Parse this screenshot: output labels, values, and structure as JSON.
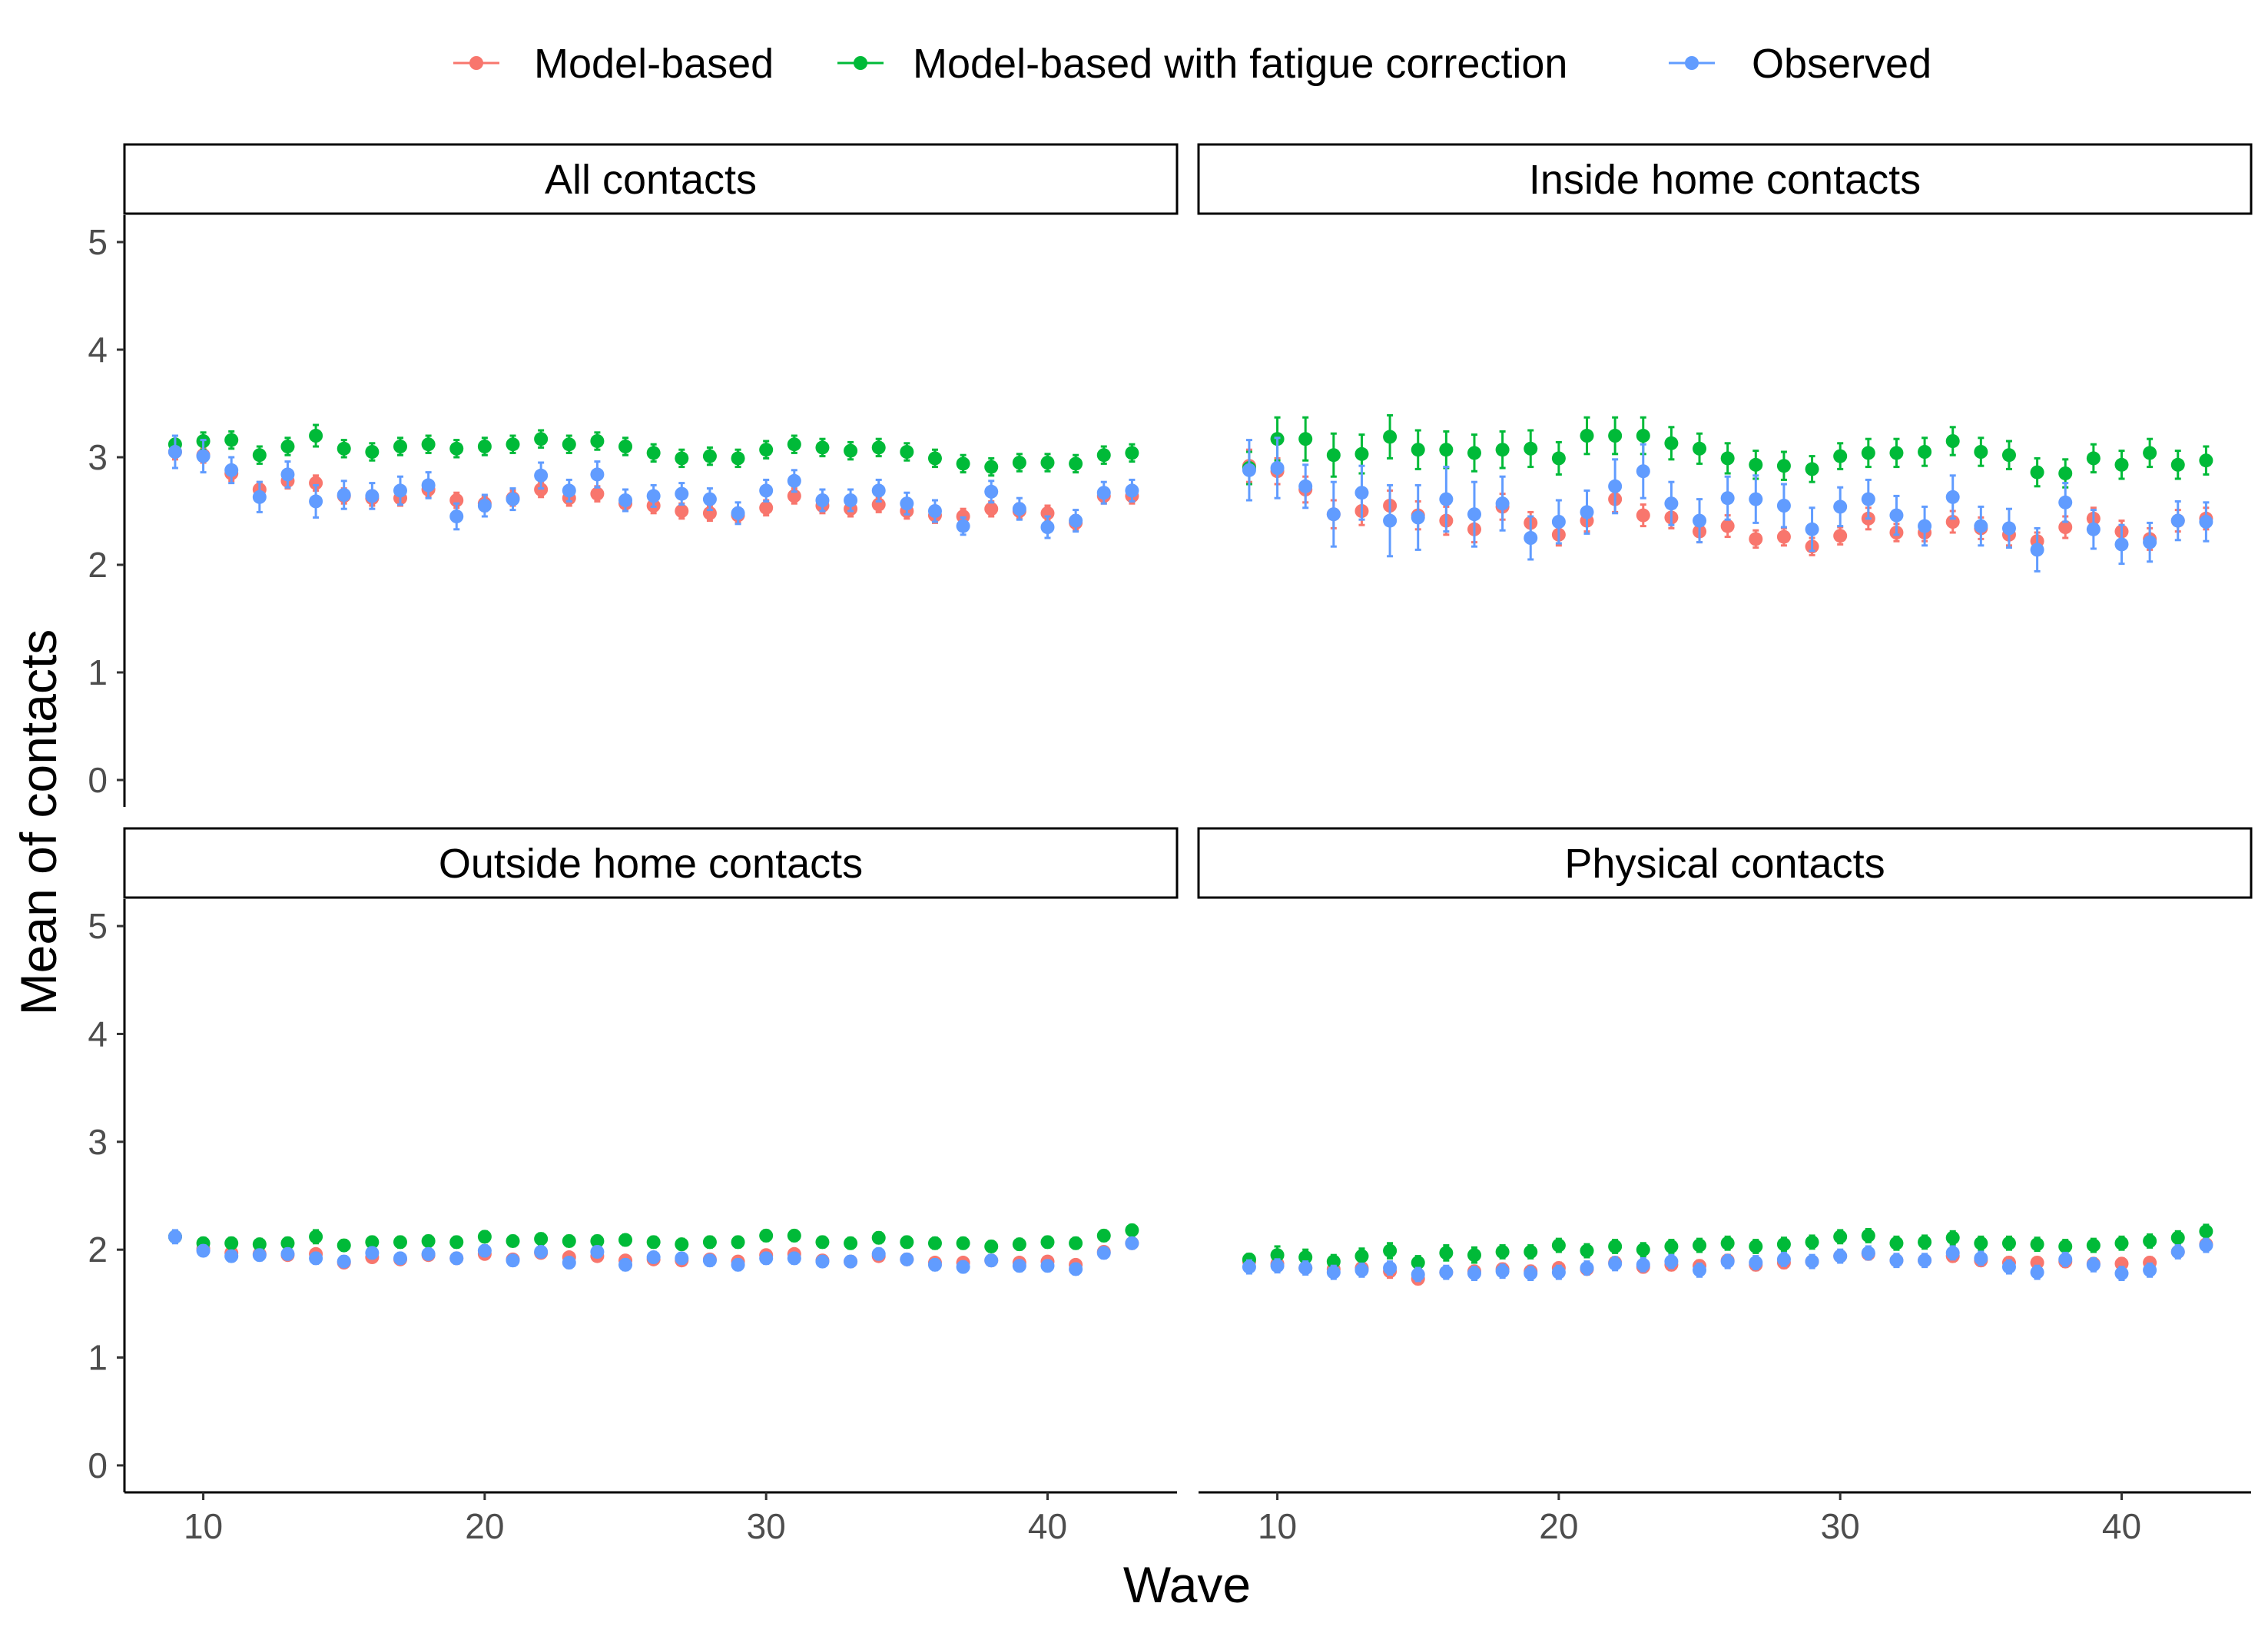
{
  "chart_data": {
    "type": "scatter",
    "xlabel": "Wave",
    "ylabel": "Mean of contacts",
    "xlim": [
      7.2,
      44.6
    ],
    "ylim": [
      -0.25,
      5.25
    ],
    "xticks": [
      10,
      20,
      30,
      40
    ],
    "yticks": [
      0,
      1,
      2,
      3,
      4,
      5
    ],
    "legend_position": "top",
    "series": [
      {
        "name": "Model-based",
        "color": "#F8766D"
      },
      {
        "name": "Model-based with fatigue correction",
        "color": "#00BA38"
      },
      {
        "name": "Observed",
        "color": "#619CFF"
      }
    ],
    "x": [
      9,
      10,
      11,
      12,
      13,
      14,
      15,
      16,
      17,
      18,
      19,
      20,
      21,
      22,
      23,
      24,
      25,
      26,
      27,
      28,
      29,
      30,
      31,
      32,
      33,
      34,
      35,
      36,
      37,
      38,
      39,
      40,
      41,
      42,
      43
    ],
    "panels": [
      {
        "title": "All contacts",
        "values": {
          "Model-based": [
            3.05,
            3.02,
            2.85,
            2.7,
            2.78,
            2.76,
            2.64,
            2.62,
            2.62,
            2.7,
            2.6,
            2.57,
            2.62,
            2.7,
            2.62,
            2.66,
            2.57,
            2.55,
            2.5,
            2.48,
            2.46,
            2.53,
            2.64,
            2.55,
            2.52,
            2.56,
            2.5,
            2.46,
            2.45,
            2.52,
            2.5,
            2.48,
            2.39,
            2.64,
            2.64
          ],
          "Model-based with fatigue correction": [
            3.12,
            3.15,
            3.16,
            3.02,
            3.1,
            3.2,
            3.08,
            3.05,
            3.1,
            3.12,
            3.08,
            3.1,
            3.12,
            3.17,
            3.12,
            3.15,
            3.1,
            3.04,
            2.99,
            3.01,
            2.99,
            3.07,
            3.12,
            3.09,
            3.06,
            3.09,
            3.05,
            2.99,
            2.94,
            2.91,
            2.95,
            2.95,
            2.94,
            3.02,
            3.04
          ],
          "Observed": [
            3.05,
            3.01,
            2.88,
            2.63,
            2.84,
            2.59,
            2.65,
            2.64,
            2.69,
            2.74,
            2.45,
            2.55,
            2.61,
            2.83,
            2.69,
            2.84,
            2.6,
            2.64,
            2.66,
            2.61,
            2.48,
            2.69,
            2.78,
            2.6,
            2.6,
            2.69,
            2.57,
            2.5,
            2.36,
            2.68,
            2.52,
            2.35,
            2.41,
            2.67,
            2.69
          ]
        },
        "errors": {
          "Model-based": [
            0.07,
            0.07,
            0.07,
            0.07,
            0.07,
            0.07,
            0.07,
            0.07,
            0.07,
            0.07,
            0.07,
            0.07,
            0.07,
            0.07,
            0.07,
            0.07,
            0.07,
            0.07,
            0.07,
            0.07,
            0.07,
            0.07,
            0.07,
            0.07,
            0.07,
            0.07,
            0.07,
            0.07,
            0.07,
            0.07,
            0.07,
            0.07,
            0.07,
            0.07,
            0.07
          ],
          "Model-based with fatigue correction": [
            0.08,
            0.08,
            0.08,
            0.08,
            0.08,
            0.1,
            0.08,
            0.08,
            0.08,
            0.08,
            0.08,
            0.08,
            0.08,
            0.08,
            0.08,
            0.08,
            0.08,
            0.08,
            0.08,
            0.08,
            0.08,
            0.08,
            0.08,
            0.08,
            0.08,
            0.08,
            0.08,
            0.08,
            0.08,
            0.08,
            0.08,
            0.08,
            0.08,
            0.08,
            0.08
          ],
          "Observed": [
            0.15,
            0.15,
            0.12,
            0.14,
            0.12,
            0.15,
            0.13,
            0.12,
            0.13,
            0.12,
            0.12,
            0.1,
            0.1,
            0.12,
            0.1,
            0.12,
            0.1,
            0.1,
            0.1,
            0.1,
            0.1,
            0.1,
            0.1,
            0.1,
            0.1,
            0.1,
            0.1,
            0.1,
            0.08,
            0.1,
            0.1,
            0.1,
            0.1,
            0.1,
            0.1
          ]
        }
      },
      {
        "title": "Inside home contacts",
        "values": {
          "Model-based": [
            2.92,
            2.87,
            2.7,
            2.47,
            2.5,
            2.55,
            2.46,
            2.41,
            2.33,
            2.54,
            2.39,
            2.28,
            2.41,
            2.61,
            2.46,
            2.44,
            2.31,
            2.36,
            2.24,
            2.26,
            2.17,
            2.27,
            2.43,
            2.3,
            2.3,
            2.4,
            2.34,
            2.28,
            2.22,
            2.35,
            2.43,
            2.31,
            2.24,
            2.41,
            2.43
          ],
          "Model-based with fatigue correction": [
            2.9,
            3.17,
            3.17,
            3.02,
            3.03,
            3.19,
            3.07,
            3.07,
            3.04,
            3.07,
            3.08,
            2.99,
            3.2,
            3.2,
            3.2,
            3.13,
            3.08,
            2.99,
            2.93,
            2.92,
            2.89,
            3.01,
            3.04,
            3.04,
            3.05,
            3.15,
            3.05,
            3.02,
            2.86,
            2.85,
            2.99,
            2.93,
            3.04,
            2.93,
            2.97
          ],
          "Observed": [
            2.88,
            2.9,
            2.73,
            2.47,
            2.67,
            2.41,
            2.44,
            2.61,
            2.47,
            2.57,
            2.25,
            2.4,
            2.49,
            2.73,
            2.87,
            2.57,
            2.41,
            2.62,
            2.61,
            2.55,
            2.33,
            2.54,
            2.61,
            2.46,
            2.36,
            2.63,
            2.36,
            2.34,
            2.14,
            2.58,
            2.33,
            2.19,
            2.21,
            2.41,
            2.4
          ]
        },
        "errors": {
          "Model-based": [
            0.15,
            0.12,
            0.12,
            0.13,
            0.13,
            0.14,
            0.13,
            0.13,
            0.12,
            0.12,
            0.1,
            0.1,
            0.1,
            0.12,
            0.1,
            0.1,
            0.1,
            0.1,
            0.08,
            0.08,
            0.08,
            0.08,
            0.1,
            0.08,
            0.08,
            0.1,
            0.1,
            0.1,
            0.08,
            0.1,
            0.1,
            0.1,
            0.1,
            0.1,
            0.1
          ],
          "Model-based with fatigue correction": [
            0.15,
            0.2,
            0.2,
            0.2,
            0.18,
            0.2,
            0.18,
            0.17,
            0.17,
            0.17,
            0.17,
            0.15,
            0.17,
            0.17,
            0.17,
            0.15,
            0.14,
            0.14,
            0.13,
            0.13,
            0.12,
            0.12,
            0.13,
            0.13,
            0.13,
            0.13,
            0.13,
            0.13,
            0.13,
            0.13,
            0.13,
            0.13,
            0.13,
            0.13,
            0.13
          ],
          "Observed": [
            0.28,
            0.28,
            0.2,
            0.3,
            0.25,
            0.33,
            0.3,
            0.3,
            0.3,
            0.25,
            0.2,
            0.2,
            0.2,
            0.25,
            0.25,
            0.2,
            0.2,
            0.2,
            0.22,
            0.2,
            0.2,
            0.18,
            0.18,
            0.18,
            0.18,
            0.2,
            0.18,
            0.18,
            0.2,
            0.18,
            0.18,
            0.18,
            0.18,
            0.18,
            0.18
          ]
        }
      },
      {
        "title": "Outside home contacts",
        "values": {
          "Model-based": [
            2.12,
            2.01,
            1.97,
            1.96,
            1.95,
            1.96,
            1.88,
            1.93,
            1.91,
            1.95,
            1.92,
            1.96,
            1.91,
            1.97,
            1.93,
            1.94,
            1.9,
            1.91,
            1.9,
            1.91,
            1.89,
            1.95,
            1.96,
            1.9,
            1.89,
            1.94,
            1.91,
            1.88,
            1.88,
            1.9,
            1.88,
            1.89,
            1.86,
            1.98,
            2.06
          ],
          "Model-based with fatigue correction": [
            2.12,
            2.06,
            2.06,
            2.05,
            2.06,
            2.12,
            2.04,
            2.07,
            2.07,
            2.08,
            2.07,
            2.12,
            2.08,
            2.1,
            2.08,
            2.08,
            2.09,
            2.07,
            2.05,
            2.07,
            2.07,
            2.13,
            2.13,
            2.07,
            2.06,
            2.11,
            2.07,
            2.06,
            2.06,
            2.03,
            2.05,
            2.07,
            2.06,
            2.13,
            2.18
          ],
          "Observed": [
            2.12,
            1.99,
            1.94,
            1.95,
            1.96,
            1.92,
            1.89,
            1.97,
            1.92,
            1.96,
            1.92,
            1.99,
            1.9,
            1.98,
            1.88,
            1.98,
            1.86,
            1.93,
            1.92,
            1.9,
            1.86,
            1.92,
            1.92,
            1.89,
            1.89,
            1.96,
            1.91,
            1.86,
            1.84,
            1.9,
            1.85,
            1.85,
            1.82,
            1.97,
            2.06
          ]
        },
        "errors": {
          "Model-based": [
            0.05,
            0.04,
            0.04,
            0.04,
            0.04,
            0.04,
            0.04,
            0.04,
            0.04,
            0.04,
            0.04,
            0.04,
            0.04,
            0.04,
            0.04,
            0.04,
            0.04,
            0.04,
            0.04,
            0.04,
            0.04,
            0.04,
            0.04,
            0.04,
            0.04,
            0.04,
            0.04,
            0.04,
            0.04,
            0.04,
            0.04,
            0.04,
            0.04,
            0.04,
            0.04
          ],
          "Model-based with fatigue correction": [
            0.05,
            0.05,
            0.05,
            0.05,
            0.05,
            0.06,
            0.05,
            0.05,
            0.05,
            0.05,
            0.05,
            0.05,
            0.05,
            0.05,
            0.05,
            0.05,
            0.05,
            0.05,
            0.05,
            0.05,
            0.05,
            0.05,
            0.05,
            0.05,
            0.05,
            0.05,
            0.05,
            0.05,
            0.05,
            0.05,
            0.05,
            0.05,
            0.05,
            0.05,
            0.05
          ],
          "Observed": [
            0.06,
            0.05,
            0.05,
            0.05,
            0.05,
            0.05,
            0.05,
            0.05,
            0.05,
            0.05,
            0.05,
            0.05,
            0.05,
            0.05,
            0.05,
            0.05,
            0.05,
            0.05,
            0.05,
            0.05,
            0.05,
            0.05,
            0.05,
            0.05,
            0.05,
            0.05,
            0.05,
            0.05,
            0.05,
            0.05,
            0.05,
            0.05,
            0.05,
            0.05,
            0.05
          ]
        }
      },
      {
        "title": "Physical contacts",
        "values": {
          "Model-based": [
            1.89,
            1.87,
            1.83,
            1.82,
            1.83,
            1.8,
            1.73,
            1.79,
            1.8,
            1.82,
            1.8,
            1.83,
            1.82,
            1.88,
            1.84,
            1.86,
            1.85,
            1.9,
            1.86,
            1.88,
            1.89,
            1.94,
            1.96,
            1.9,
            1.9,
            1.94,
            1.9,
            1.88,
            1.88,
            1.89,
            1.87,
            1.87,
            1.88,
            1.98,
            2.05
          ],
          "Model-based with fatigue correction": [
            1.91,
            1.95,
            1.93,
            1.89,
            1.94,
            1.99,
            1.88,
            1.97,
            1.95,
            1.98,
            1.98,
            2.04,
            1.99,
            2.03,
            2.0,
            2.03,
            2.04,
            2.06,
            2.03,
            2.05,
            2.07,
            2.12,
            2.13,
            2.06,
            2.07,
            2.11,
            2.06,
            2.06,
            2.05,
            2.03,
            2.04,
            2.06,
            2.08,
            2.11,
            2.17
          ],
          "Observed": [
            1.84,
            1.85,
            1.83,
            1.79,
            1.81,
            1.83,
            1.77,
            1.79,
            1.78,
            1.8,
            1.78,
            1.79,
            1.83,
            1.87,
            1.86,
            1.89,
            1.81,
            1.89,
            1.88,
            1.91,
            1.89,
            1.94,
            1.97,
            1.9,
            1.9,
            1.97,
            1.92,
            1.84,
            1.79,
            1.91,
            1.86,
            1.78,
            1.81,
            1.98,
            2.04
          ]
        },
        "errors": {
          "Model-based": [
            0.05,
            0.05,
            0.05,
            0.05,
            0.05,
            0.06,
            0.05,
            0.05,
            0.05,
            0.05,
            0.05,
            0.05,
            0.05,
            0.05,
            0.05,
            0.05,
            0.05,
            0.05,
            0.05,
            0.05,
            0.05,
            0.05,
            0.05,
            0.05,
            0.05,
            0.05,
            0.05,
            0.05,
            0.05,
            0.05,
            0.05,
            0.05,
            0.05,
            0.05,
            0.05
          ],
          "Model-based with fatigue correction": [
            0.05,
            0.08,
            0.07,
            0.06,
            0.07,
            0.07,
            0.06,
            0.07,
            0.07,
            0.06,
            0.06,
            0.06,
            0.06,
            0.06,
            0.06,
            0.06,
            0.06,
            0.06,
            0.06,
            0.06,
            0.06,
            0.06,
            0.06,
            0.06,
            0.06,
            0.06,
            0.06,
            0.06,
            0.06,
            0.06,
            0.06,
            0.06,
            0.06,
            0.06,
            0.06
          ],
          "Observed": [
            0.06,
            0.06,
            0.06,
            0.06,
            0.06,
            0.06,
            0.06,
            0.06,
            0.06,
            0.06,
            0.06,
            0.06,
            0.06,
            0.06,
            0.06,
            0.06,
            0.06,
            0.06,
            0.06,
            0.06,
            0.06,
            0.06,
            0.06,
            0.06,
            0.06,
            0.06,
            0.06,
            0.06,
            0.06,
            0.06,
            0.06,
            0.06,
            0.06,
            0.06,
            0.06
          ]
        }
      }
    ]
  }
}
